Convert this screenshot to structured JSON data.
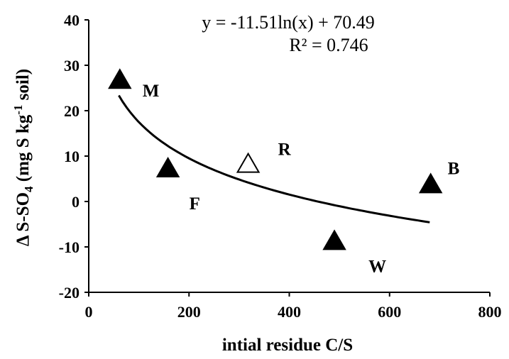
{
  "chart_data": {
    "type": "scatter",
    "xlabel": "intial residue C/S",
    "ylabel": {
      "prefix": "Δ S-SO",
      "sub": "4",
      "mid": " (mg S kg",
      "sup": "-1",
      "suffix": " soil)"
    },
    "xlim": [
      0,
      800
    ],
    "ylim": [
      -20,
      40
    ],
    "x_ticks": [
      0,
      200,
      400,
      600,
      800
    ],
    "y_ticks": [
      -20,
      -10,
      0,
      10,
      20,
      30,
      40
    ],
    "grid": false,
    "points": [
      {
        "label": "M",
        "x": 62,
        "y": 27,
        "filled": true
      },
      {
        "label": "F",
        "x": 158,
        "y": 7.5,
        "filled": true
      },
      {
        "label": "R",
        "x": 318,
        "y": 8.5,
        "filled": false
      },
      {
        "label": "W",
        "x": 490,
        "y": -8.5,
        "filled": true
      },
      {
        "label": "B",
        "x": 682,
        "y": 4,
        "filled": true
      }
    ],
    "trendline": {
      "type": "logarithmic",
      "a": -11.51,
      "b": 70.49,
      "x_range": [
        60,
        680
      ],
      "equation": "y = -11.51ln(x) + 70.49",
      "r_squared": "R² = 0.746"
    }
  }
}
